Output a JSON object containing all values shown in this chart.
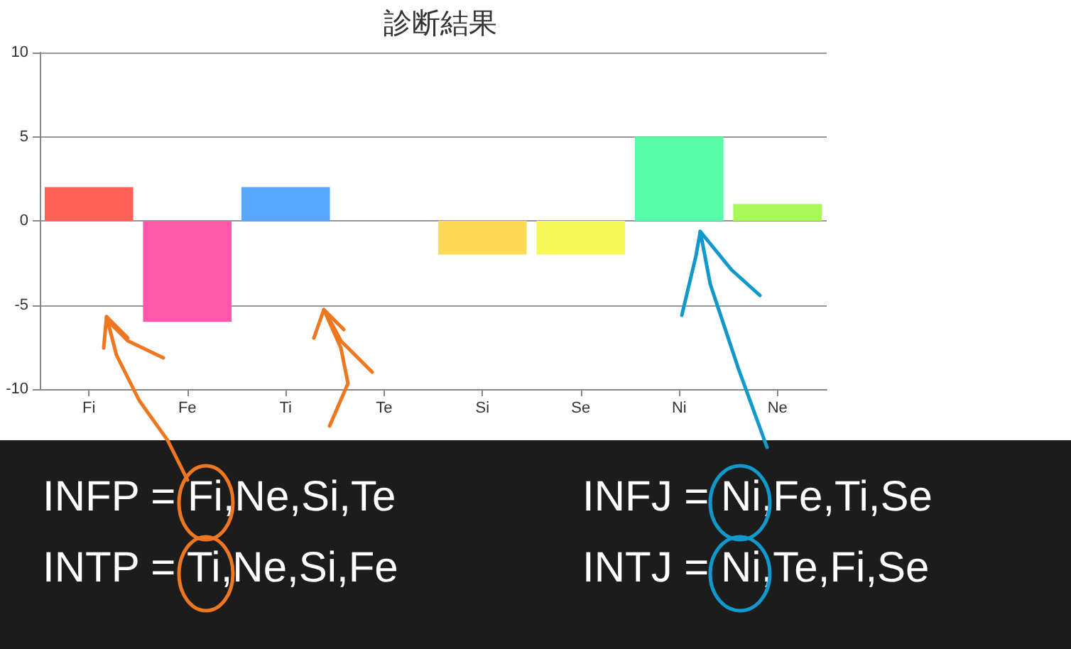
{
  "chart_data": {
    "type": "bar",
    "title": "診断結果",
    "categories": [
      "Fi",
      "Fe",
      "Ti",
      "Te",
      "Si",
      "Se",
      "Ni",
      "Ne"
    ],
    "values": [
      2,
      -6,
      2,
      0,
      -2,
      -2,
      5,
      1
    ],
    "colors": [
      "#ff6058",
      "#ff58a8",
      "#58a8ff",
      "#58ffa8",
      "#ffd958",
      "#f8f858",
      "#58fca8",
      "#a8f858"
    ],
    "ylim": [
      -10,
      10
    ],
    "yticks": [
      -10,
      -5,
      0,
      5,
      10
    ],
    "grid": "y",
    "annotations": [
      "INFP = Fi,Ne,Si,Te",
      "INFJ = Ni,Fe,Ti,Se",
      "INTP = Ti,Ne,Si,Fe",
      "INTJ = Ni,Te,Fi,Se"
    ]
  }
}
